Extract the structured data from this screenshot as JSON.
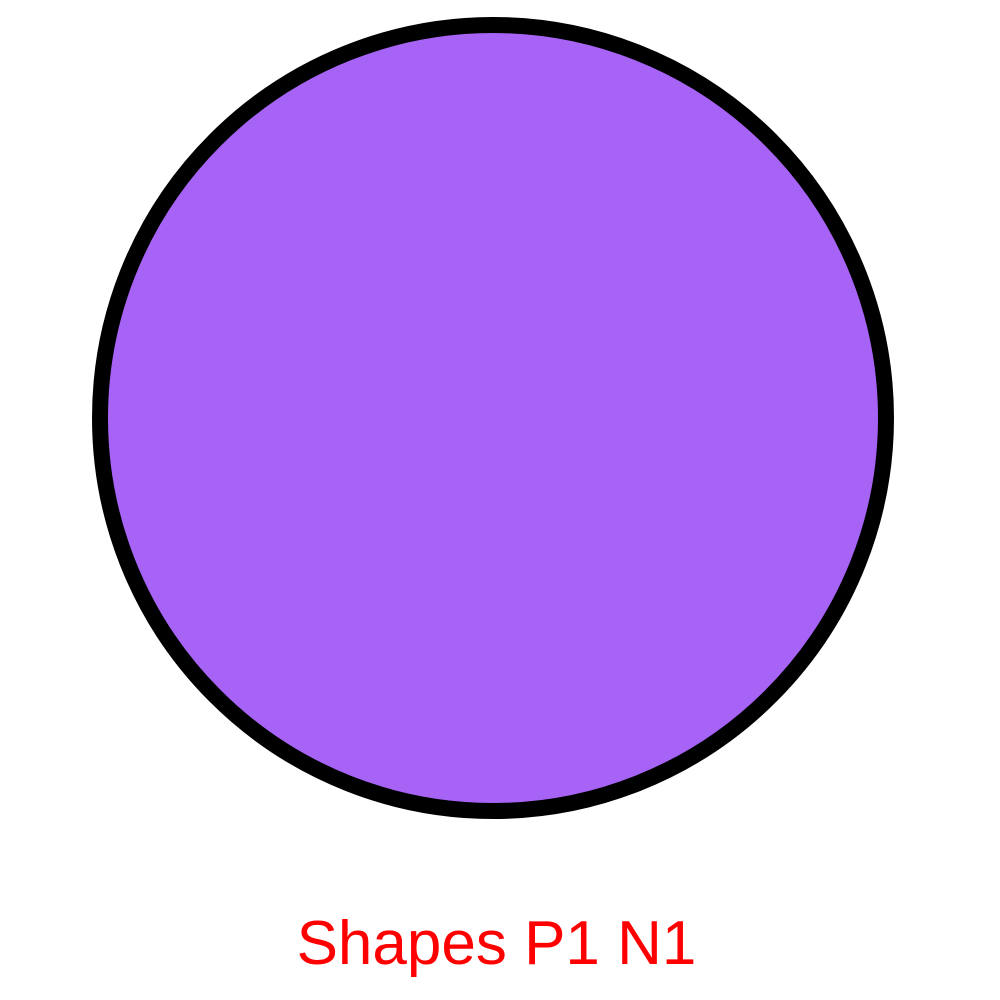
{
  "shape": {
    "type": "circle",
    "fill_color": "#a663f5",
    "stroke_color": "#000000"
  },
  "caption": {
    "text": "Shapes P1 N1",
    "color": "#ff0000"
  }
}
